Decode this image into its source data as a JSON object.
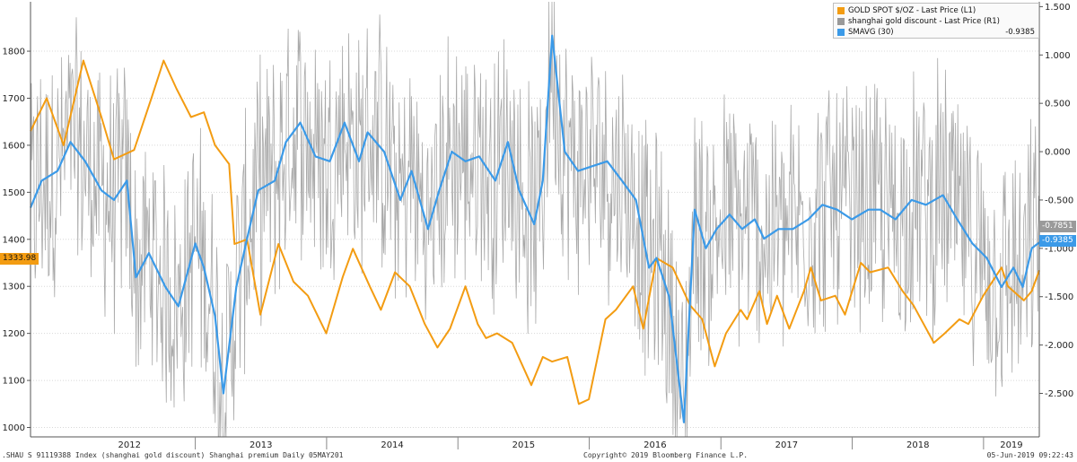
{
  "chart_data": {
    "type": "line",
    "x_range": [
      "2011-10-01",
      "2019-06-05"
    ],
    "years": [
      "2012",
      "2013",
      "2014",
      "2015",
      "2016",
      "2017",
      "2018",
      "2019"
    ],
    "left_axis": {
      "ticks": [
        1000,
        1100,
        1200,
        1300,
        1400,
        1500,
        1600,
        1700,
        1800
      ],
      "range": [
        980,
        1905
      ]
    },
    "right_axis": {
      "ticks": [
        "1.500",
        "1.000",
        "0.500",
        "0.000",
        "-0.500",
        "-1.000",
        "-1.500",
        "-2.000",
        "-2.500"
      ],
      "range": [
        -2.95,
        1.55
      ]
    },
    "series": [
      {
        "name": "GOLD SPOT $/OZ - Last Price  (L1)",
        "axis": "left",
        "color": "#f39c12",
        "x": [
          "2011-10-01",
          "2011-11-15",
          "2012-01-01",
          "2012-02-25",
          "2012-04-15",
          "2012-05-20",
          "2012-07-15",
          "2012-09-01",
          "2012-10-05",
          "2012-11-10",
          "2012-12-20",
          "2013-01-25",
          "2013-02-25",
          "2013-04-05",
          "2013-04-20",
          "2013-05-25",
          "2013-07-01",
          "2013-08-20",
          "2013-10-01",
          "2013-11-10",
          "2013-12-31",
          "2014-02-15",
          "2014-03-15",
          "2014-05-01",
          "2014-06-01",
          "2014-07-10",
          "2014-08-20",
          "2014-10-01",
          "2014-11-05",
          "2014-12-10",
          "2015-01-22",
          "2015-02-25",
          "2015-03-20",
          "2015-04-20",
          "2015-06-01",
          "2015-07-24",
          "2015-08-25",
          "2015-09-20",
          "2015-11-01",
          "2015-12-03",
          "2015-12-31",
          "2016-02-15",
          "2016-03-15",
          "2016-05-02",
          "2016-05-30",
          "2016-07-06",
          "2016-08-20",
          "2016-10-07",
          "2016-11-10",
          "2016-12-15",
          "2017-01-15",
          "2017-02-25",
          "2017-03-15",
          "2017-04-18",
          "2017-05-09",
          "2017-06-06",
          "2017-07-10",
          "2017-08-20",
          "2017-09-08",
          "2017-10-06",
          "2017-11-15",
          "2017-12-12",
          "2018-01-25",
          "2018-02-20",
          "2018-04-11",
          "2018-05-21",
          "2018-06-20",
          "2018-08-16",
          "2018-09-15",
          "2018-10-26",
          "2018-11-20",
          "2018-12-31",
          "2019-02-20",
          "2019-03-10",
          "2019-04-23",
          "2019-05-15",
          "2019-06-05"
        ],
        "y": [
          1630,
          1700,
          1600,
          1780,
          1660,
          1570,
          1590,
          1700,
          1780,
          1720,
          1660,
          1670,
          1600,
          1560,
          1390,
          1400,
          1240,
          1390,
          1310,
          1280,
          1200,
          1320,
          1380,
          1300,
          1250,
          1330,
          1300,
          1220,
          1170,
          1210,
          1300,
          1220,
          1190,
          1200,
          1180,
          1090,
          1150,
          1140,
          1150,
          1050,
          1060,
          1230,
          1250,
          1300,
          1210,
          1360,
          1340,
          1260,
          1230,
          1130,
          1200,
          1250,
          1230,
          1290,
          1220,
          1280,
          1210,
          1290,
          1340,
          1270,
          1280,
          1240,
          1350,
          1330,
          1340,
          1290,
          1260,
          1180,
          1200,
          1230,
          1220,
          1280,
          1340,
          1300,
          1270,
          1290,
          1333.98
        ]
      },
      {
        "name": "shanghai gold discount - Last Price  (R1)",
        "axis": "right",
        "color": "#999999",
        "last": -0.7851
      },
      {
        "name": "SMAVG (30)",
        "axis": "right",
        "color": "#3b9ae8",
        "last": -0.9385,
        "x": [
          "2011-10-01",
          "2011-11-01",
          "2011-12-15",
          "2012-01-20",
          "2012-03-01",
          "2012-04-15",
          "2012-05-20",
          "2012-06-25",
          "2012-07-20",
          "2012-08-25",
          "2012-10-10",
          "2012-11-15",
          "2013-01-01",
          "2013-01-25",
          "2013-02-25",
          "2013-03-20",
          "2013-04-25",
          "2013-05-25",
          "2013-06-25",
          "2013-08-10",
          "2013-09-10",
          "2013-10-20",
          "2013-12-01",
          "2014-01-10",
          "2014-02-20",
          "2014-04-01",
          "2014-04-25",
          "2014-06-10",
          "2014-07-25",
          "2014-08-25",
          "2014-10-10",
          "2014-11-10",
          "2014-12-15",
          "2015-01-22",
          "2015-03-01",
          "2015-04-15",
          "2015-05-20",
          "2015-06-20",
          "2015-08-01",
          "2015-08-25",
          "2015-09-20",
          "2015-10-25",
          "2015-12-01",
          "2016-01-10",
          "2016-02-20",
          "2016-04-01",
          "2016-05-10",
          "2016-06-15",
          "2016-07-06",
          "2016-08-10",
          "2016-09-20",
          "2016-10-20",
          "2016-11-20",
          "2016-12-20",
          "2017-01-25",
          "2017-03-01",
          "2017-04-05",
          "2017-05-01",
          "2017-06-10",
          "2017-07-20",
          "2017-09-01",
          "2017-10-10",
          "2017-11-20",
          "2017-12-31",
          "2018-02-15",
          "2018-03-20",
          "2018-05-01",
          "2018-06-15",
          "2018-07-25",
          "2018-09-10",
          "2018-10-20",
          "2018-12-01",
          "2019-01-10",
          "2019-02-20",
          "2019-03-25",
          "2019-04-20",
          "2019-05-15",
          "2019-06-05"
        ],
        "y": [
          -0.58,
          -0.3,
          -0.2,
          0.1,
          -0.1,
          -0.4,
          -0.5,
          -0.3,
          -1.3,
          -1.05,
          -1.4,
          -1.6,
          -0.95,
          -1.2,
          -1.7,
          -2.5,
          -1.4,
          -0.9,
          -0.4,
          -0.3,
          0.1,
          0.3,
          -0.05,
          -0.1,
          0.3,
          -0.1,
          0.2,
          0.0,
          -0.5,
          -0.2,
          -0.8,
          -0.4,
          0.0,
          -0.1,
          -0.05,
          -0.3,
          0.1,
          -0.4,
          -0.75,
          -0.3,
          1.2,
          0.0,
          -0.2,
          -0.15,
          -0.1,
          -0.3,
          -0.5,
          -1.2,
          -1.1,
          -1.5,
          -2.8,
          -0.6,
          -1.0,
          -0.8,
          -0.65,
          -0.8,
          -0.7,
          -0.9,
          -0.8,
          -0.8,
          -0.7,
          -0.55,
          -0.6,
          -0.7,
          -0.6,
          -0.6,
          -0.7,
          -0.5,
          -0.55,
          -0.45,
          -0.7,
          -0.95,
          -1.1,
          -1.4,
          -1.2,
          -1.4,
          -1.0,
          -0.9385
        ]
      }
    ],
    "current_labels": {
      "gold": "1333.98",
      "discount": "-0.7851",
      "smavg": "-0.9385"
    }
  },
  "legend": {
    "gold": "GOLD SPOT $/OZ - Last Price  (L1)",
    "discount": "shanghai gold discount - Last Price  (R1)",
    "smavg": "SMAVG (30)",
    "smavg_value": "-0.9385"
  },
  "footer": {
    "left": ".SHAU S 91119388 Index (shanghai gold discount) Shanghai premium  Daily 05MAY201",
    "center": "Copyright© 2019 Bloomberg Finance L.P.",
    "right": "05-Jun-2019 09:22:43"
  },
  "colors": {
    "gold": "#f39c12",
    "discount": "#999999",
    "smavg": "#3b9ae8"
  }
}
